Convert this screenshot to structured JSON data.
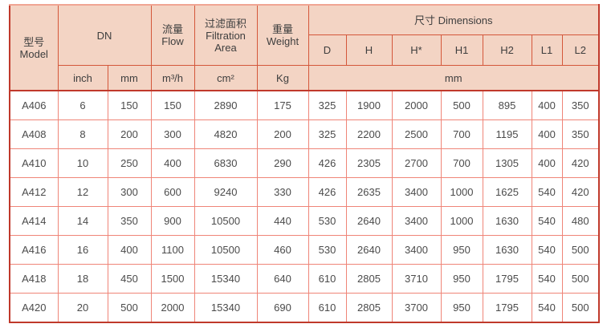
{
  "table": {
    "header": {
      "model": {
        "zh": "型号",
        "en": "Model"
      },
      "dn": "DN",
      "flow": {
        "zh": "流量",
        "en": "Flow"
      },
      "filtration": {
        "zh": "过滤面积",
        "en_line1": "Filtration",
        "en_line2": "Area"
      },
      "weight": {
        "zh": "重量",
        "en": "Weight"
      },
      "dimensions": "尺寸 Dimensions",
      "dim_cols": [
        "D",
        "H",
        "H*",
        "H1",
        "H2",
        "L1",
        "L2"
      ],
      "units": {
        "inch": "inch",
        "mm": "mm",
        "flow": "m³/h",
        "area": "cm²",
        "weight": "Kg",
        "dims": "mm"
      }
    },
    "rows": [
      {
        "model": "A406",
        "inch": "6",
        "mm": "150",
        "flow": "150",
        "area": "2890",
        "weight": "175",
        "dims": [
          "325",
          "1900",
          "2000",
          "500",
          "895",
          "400",
          "350"
        ]
      },
      {
        "model": "A408",
        "inch": "8",
        "mm": "200",
        "flow": "300",
        "area": "4820",
        "weight": "200",
        "dims": [
          "325",
          "2200",
          "2500",
          "700",
          "1195",
          "400",
          "350"
        ]
      },
      {
        "model": "A410",
        "inch": "10",
        "mm": "250",
        "flow": "400",
        "area": "6830",
        "weight": "290",
        "dims": [
          "426",
          "2305",
          "2700",
          "700",
          "1305",
          "400",
          "420"
        ]
      },
      {
        "model": "A412",
        "inch": "12",
        "mm": "300",
        "flow": "600",
        "area": "9240",
        "weight": "330",
        "dims": [
          "426",
          "2635",
          "3400",
          "1000",
          "1625",
          "540",
          "420"
        ]
      },
      {
        "model": "A414",
        "inch": "14",
        "mm": "350",
        "flow": "900",
        "area": "10500",
        "weight": "440",
        "dims": [
          "530",
          "2640",
          "3400",
          "1000",
          "1630",
          "540",
          "480"
        ]
      },
      {
        "model": "A416",
        "inch": "16",
        "mm": "400",
        "flow": "1100",
        "area": "10500",
        "weight": "460",
        "dims": [
          "530",
          "2640",
          "3400",
          "950",
          "1630",
          "540",
          "500"
        ]
      },
      {
        "model": "A418",
        "inch": "18",
        "mm": "450",
        "flow": "1500",
        "area": "15340",
        "weight": "640",
        "dims": [
          "610",
          "2805",
          "3710",
          "950",
          "1795",
          "540",
          "500"
        ]
      },
      {
        "model": "A420",
        "inch": "20",
        "mm": "500",
        "flow": "2000",
        "area": "15340",
        "weight": "690",
        "dims": [
          "610",
          "2805",
          "3700",
          "950",
          "1795",
          "540",
          "500"
        ]
      }
    ]
  },
  "colors": {
    "header_bg": "#f3d4c4",
    "outer_border": "#c0392b",
    "header_grid": "#d4573a",
    "body_grid": "#ef8578",
    "header_text": "#3e3e3e",
    "body_text": "#4b4b4b"
  }
}
